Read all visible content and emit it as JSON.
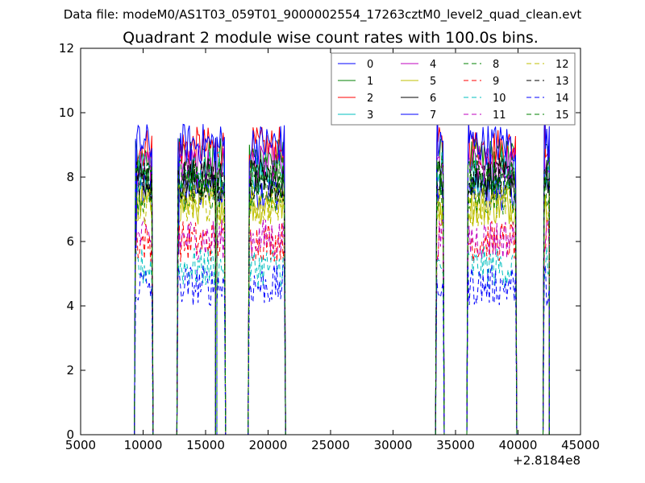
{
  "figure": {
    "supertitle": "Data file: modeM0/AS1T03_059T01_9000002554_17263cztM0_level2_quad_clean.evt"
  },
  "chart_data": {
    "type": "line",
    "title": "Quadrant 2 module wise count rates with 100.0s bins.",
    "xlabel": "",
    "ylabel": "",
    "x_offset_label": "+2.8184e8",
    "xlim": [
      5000,
      45000
    ],
    "ylim": [
      0,
      12
    ],
    "xticks": [
      5000,
      10000,
      15000,
      20000,
      25000,
      30000,
      35000,
      40000,
      45000
    ],
    "xtick_labels": [
      "5000",
      "10000",
      "15000",
      "20000",
      "25000",
      "30000",
      "35000",
      "40000",
      "45000"
    ],
    "yticks": [
      0,
      2,
      4,
      6,
      8,
      10,
      12
    ],
    "ytick_labels": [
      "0",
      "2",
      "4",
      "6",
      "8",
      "10",
      "12"
    ],
    "grid": false,
    "legend_position": "top-right",
    "bin_width": 100,
    "segments": [
      [
        9400,
        10700
      ],
      [
        12800,
        15800
      ],
      [
        15900,
        16500
      ],
      [
        18500,
        21300
      ],
      [
        33500,
        34000
      ],
      [
        36000,
        39800
      ],
      [
        42100,
        42500
      ]
    ],
    "segment_peaks": [
      [
        [
          9450,
          5.8
        ]
      ],
      [
        [
          12850,
          5.6
        ]
      ],
      [],
      [],
      [
        [
          33550,
          10.2
        ]
      ],
      [
        [
          36050,
          9.8
        ]
      ],
      [
        [
          42150,
          10.5
        ]
      ]
    ],
    "series": [
      {
        "name": "0",
        "color": "#0000ff",
        "dashed": false,
        "level": 7.6
      },
      {
        "name": "1",
        "color": "#008000",
        "dashed": false,
        "level": 8.6
      },
      {
        "name": "2",
        "color": "#ff0000",
        "dashed": false,
        "level": 8.9
      },
      {
        "name": "3",
        "color": "#00bfbf",
        "dashed": false,
        "level": 8.2
      },
      {
        "name": "4",
        "color": "#bf00bf",
        "dashed": false,
        "level": 8.3
      },
      {
        "name": "5",
        "color": "#bfbf00",
        "dashed": false,
        "level": 7.2
      },
      {
        "name": "6",
        "color": "#000000",
        "dashed": false,
        "level": 7.9
      },
      {
        "name": "7",
        "color": "#0000ff",
        "dashed": false,
        "level": 9.1
      },
      {
        "name": "8",
        "color": "#008000",
        "dashed": true,
        "level": 7.4
      },
      {
        "name": "9",
        "color": "#ff0000",
        "dashed": true,
        "level": 6.1
      },
      {
        "name": "10",
        "color": "#00bfbf",
        "dashed": true,
        "level": 5.1
      },
      {
        "name": "11",
        "color": "#bf00bf",
        "dashed": true,
        "level": 6.2
      },
      {
        "name": "12",
        "color": "#bfbf00",
        "dashed": true,
        "level": 7.0
      },
      {
        "name": "13",
        "color": "#000000",
        "dashed": true,
        "level": 8.0
      },
      {
        "name": "14",
        "color": "#0000ff",
        "dashed": true,
        "level": 4.5
      },
      {
        "name": "15",
        "color": "#008000",
        "dashed": true,
        "level": 8.2
      }
    ]
  }
}
